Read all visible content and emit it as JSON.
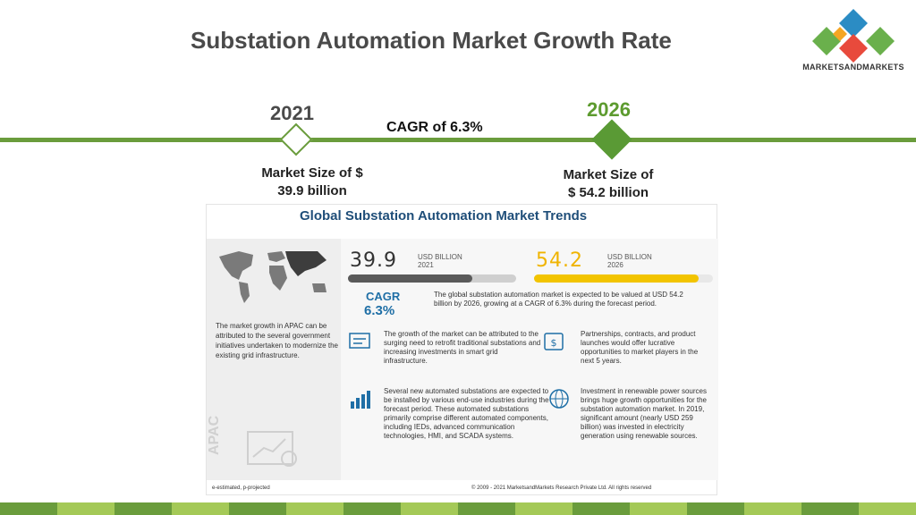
{
  "slide": {
    "title": "Substation Automation Market Growth Rate"
  },
  "logo": {
    "text": "MARKETSANDMARKETS",
    "colors": [
      "#2b8cc4",
      "#e84a3c",
      "#6ab04c",
      "#f5a623"
    ]
  },
  "timeline": {
    "year_start": "2021",
    "year_end": "2026",
    "cagr": "CAGR of 6.3%",
    "size_start_line1": "Market Size of $",
    "size_start_line2": "39.9 billion",
    "size_end_line1": "Market Size of",
    "size_end_line2": "$ 54.2 billion",
    "line_color": "#6a9c3c"
  },
  "infographic": {
    "title": "Global Substation Automation Market Trends",
    "value_2021": "39.9",
    "unit_2021_line1": "USD BILLION",
    "unit_2021_line2": "2021",
    "value_2026": "54.2",
    "unit_2026_line1": "USD BILLION",
    "unit_2026_line2": "2026",
    "bar_2021_fill": 0.74,
    "bar_2026_fill": 1.0,
    "cagr_label": "CAGR",
    "cagr_value": "6.3%",
    "cagr_description": "The global substation automation market is expected to be valued at USD 54.2 billion by 2026, growing at a CAGR of 6.3% during the forecast period.",
    "apac_text": "The market growth in APAC can be attributed to the several government initiatives undertaken to modernize the existing grid infrastructure.",
    "apac_label": "APAC",
    "block1": "The growth of the market can be attributed to the surging need to retrofit traditional substations and increasing investments in smart grid infrastructure.",
    "block2": "Partnerships, contracts, and product launches would offer lucrative opportunities to market players in the next 5 years.",
    "block3": "Several new automated substations are expected to be installed by various end-use industries during the forecast period. These automated substations primarily comprise different automated components, including IEDs, advanced communication technologies, HMI, and SCADA systems.",
    "block4": "Investment in renewable power sources brings huge growth opportunities for the substation automation market. In 2019, significant amount (nearly USD 259 billion) was invested in electricity generation using renewable sources.",
    "footnote_left": "e-estimated, p-projected",
    "footnote_right": "© 2009 - 2021 MarketsandMarkets Research Private Ltd. All rights reserved"
  },
  "bottom_bar_colors": [
    "#6a9c3c",
    "#a4c957",
    "#6a9c3c",
    "#a4c957",
    "#6a9c3c",
    "#a4c957",
    "#6a9c3c",
    "#a4c957",
    "#6a9c3c",
    "#a4c957",
    "#6a9c3c",
    "#a4c957",
    "#6a9c3c",
    "#a4c957",
    "#6a9c3c",
    "#a4c957"
  ]
}
